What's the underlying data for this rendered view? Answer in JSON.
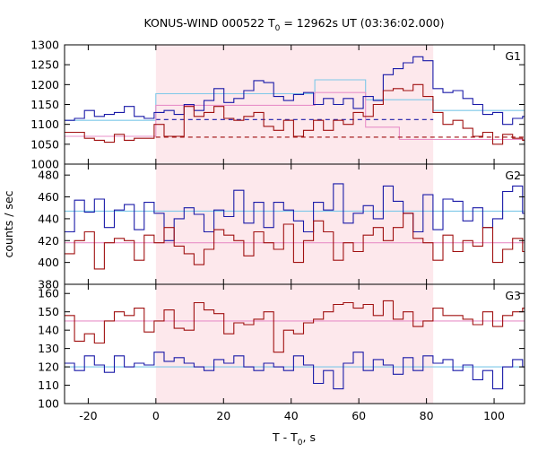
{
  "title": {
    "main": "KONUS-WIND 000522 T",
    "sub": "0",
    "rest": " = 12962s UT (03:36:02.000)"
  },
  "xlabel": {
    "main": "T - T",
    "sub": "0",
    "rest": ", s"
  },
  "ylabel": "counts / sec",
  "colors": {
    "blue": "#1a1aa8",
    "red": "#a01010",
    "light_blue": "#7ec8e8",
    "pink": "#e890c8",
    "shade": "#fde8ec"
  },
  "chart_data": {
    "type": "line",
    "xlim": [
      -27,
      109
    ],
    "xticks": [
      -20,
      0,
      20,
      40,
      60,
      80,
      100
    ],
    "shaded_interval": [
      0,
      82
    ],
    "bin_width": 2.944,
    "x_start": -27,
    "panels": [
      {
        "label": "G1",
        "ylim": [
          1000,
          1300
        ],
        "yticks": [
          1000,
          1050,
          1100,
          1150,
          1200,
          1250,
          1300
        ],
        "series": [
          {
            "color": "blue",
            "values": [
              1110,
              1115,
              1135,
              1120,
              1125,
              1130,
              1145,
              1120,
              1115,
              1130,
              1135,
              1125,
              1150,
              1135,
              1160,
              1190,
              1155,
              1165,
              1185,
              1210,
              1205,
              1170,
              1160,
              1175,
              1180,
              1150,
              1165,
              1150,
              1165,
              1140,
              1170,
              1160,
              1225,
              1240,
              1255,
              1270,
              1260,
              1190,
              1180,
              1185,
              1165,
              1150,
              1125,
              1130,
              1100,
              1115,
              1120,
              1110,
              1135,
              1115,
              1110,
              1120,
              1125,
              1110,
              1115,
              1105
            ]
          },
          {
            "color": "red",
            "values": [
              1080,
              1080,
              1065,
              1060,
              1055,
              1075,
              1060,
              1065,
              1065,
              1100,
              1070,
              1070,
              1145,
              1120,
              1130,
              1145,
              1115,
              1110,
              1120,
              1130,
              1095,
              1085,
              1110,
              1070,
              1085,
              1110,
              1085,
              1110,
              1100,
              1130,
              1120,
              1150,
              1185,
              1190,
              1185,
              1200,
              1170,
              1130,
              1100,
              1110,
              1090,
              1070,
              1080,
              1050,
              1075,
              1065,
              1060,
              1055,
              1060,
              1080,
              1070,
              1070,
              1060,
              1050,
              1045,
              1050
            ]
          }
        ],
        "fits": [
          {
            "color": "light_blue",
            "style": "solid",
            "points": [
              [
                -27,
                1110
              ],
              [
                0,
                1110
              ],
              [
                0,
                1177
              ],
              [
                47,
                1177
              ],
              [
                47,
                1212
              ],
              [
                62,
                1212
              ],
              [
                62,
                1162
              ],
              [
                82,
                1162
              ],
              [
                82,
                1135
              ],
              [
                109,
                1135
              ]
            ]
          },
          {
            "color": "blue",
            "style": "dashed",
            "points": [
              [
                0,
                1112
              ],
              [
                82,
                1112
              ]
            ]
          },
          {
            "color": "pink",
            "style": "solid",
            "points": [
              [
                -27,
                1070
              ],
              [
                0,
                1070
              ],
              [
                0,
                1148
              ],
              [
                47,
                1148
              ],
              [
                47,
                1180
              ],
              [
                62,
                1180
              ],
              [
                62,
                1093
              ],
              [
                72,
                1093
              ],
              [
                72,
                1062
              ],
              [
                109,
                1062
              ]
            ]
          },
          {
            "color": "red",
            "style": "dashed",
            "points": [
              [
                0,
                1068
              ],
              [
                109,
                1068
              ]
            ]
          }
        ]
      },
      {
        "label": "G2",
        "ylim": [
          380,
          490
        ],
        "yticks": [
          380,
          400,
          420,
          440,
          460,
          480
        ],
        "series": [
          {
            "color": "blue",
            "values": [
              428,
              457,
              446,
              458,
              432,
              448,
              453,
              430,
              455,
              445,
              420,
              440,
              450,
              444,
              428,
              448,
              442,
              466,
              436,
              455,
              432,
              455,
              448,
              438,
              428,
              455,
              448,
              472,
              436,
              445,
              452,
              440,
              470,
              456,
              445,
              428,
              462,
              430,
              458,
              456,
              438,
              450,
              432,
              440,
              465,
              470,
              445,
              440,
              430,
              440,
              476,
              460,
              445,
              435,
              455,
              442
            ]
          },
          {
            "color": "red",
            "values": [
              408,
              420,
              428,
              394,
              418,
              422,
              420,
              402,
              425,
              418,
              432,
              415,
              408,
              398,
              412,
              430,
              425,
              420,
              406,
              428,
              418,
              412,
              435,
              400,
              420,
              438,
              428,
              402,
              418,
              410,
              425,
              432,
              420,
              432,
              445,
              422,
              418,
              402,
              425,
              410,
              420,
              415,
              432,
              400,
              412,
              422,
              410,
              428,
              420,
              408,
              430,
              425,
              412,
              405,
              430,
              420
            ]
          }
        ],
        "fits": [
          {
            "color": "light_blue",
            "style": "solid",
            "points": [
              [
                -27,
                447
              ],
              [
                109,
                447
              ]
            ]
          },
          {
            "color": "pink",
            "style": "solid",
            "points": [
              [
                -27,
                418
              ],
              [
                109,
                418
              ]
            ]
          }
        ]
      },
      {
        "label": "G3",
        "ylim": [
          100,
          165
        ],
        "yticks": [
          100,
          110,
          120,
          130,
          140,
          150,
          160
        ],
        "series": [
          {
            "color": "blue",
            "values": [
              122,
              118,
              126,
              121,
              117,
              126,
              120,
              122,
              121,
              128,
              123,
              125,
              122,
              120,
              118,
              124,
              122,
              126,
              120,
              118,
              122,
              120,
              118,
              126,
              121,
              111,
              118,
              108,
              122,
              128,
              118,
              124,
              121,
              116,
              125,
              118,
              126,
              122,
              124,
              118,
              121,
              113,
              118,
              108,
              120,
              124,
              120,
              128,
              118,
              117,
              131,
              119,
              118,
              120,
              120,
              115
            ]
          },
          {
            "color": "red",
            "values": [
              148,
              134,
              138,
              133,
              145,
              150,
              148,
              152,
              139,
              145,
              151,
              141,
              140,
              155,
              151,
              149,
              138,
              144,
              143,
              146,
              150,
              128,
              140,
              138,
              144,
              146,
              150,
              154,
              155,
              152,
              154,
              148,
              156,
              146,
              150,
              142,
              145,
              152,
              148,
              148,
              146,
              143,
              150,
              142,
              148,
              150,
              152,
              151,
              150,
              144,
              152,
              146,
              150,
              148,
              140,
              158
            ]
          }
        ],
        "fits": [
          {
            "color": "light_blue",
            "style": "solid",
            "points": [
              [
                -27,
                120
              ],
              [
                109,
                120
              ]
            ]
          },
          {
            "color": "pink",
            "style": "solid",
            "points": [
              [
                -27,
                145
              ],
              [
                109,
                145
              ]
            ]
          }
        ]
      }
    ]
  }
}
